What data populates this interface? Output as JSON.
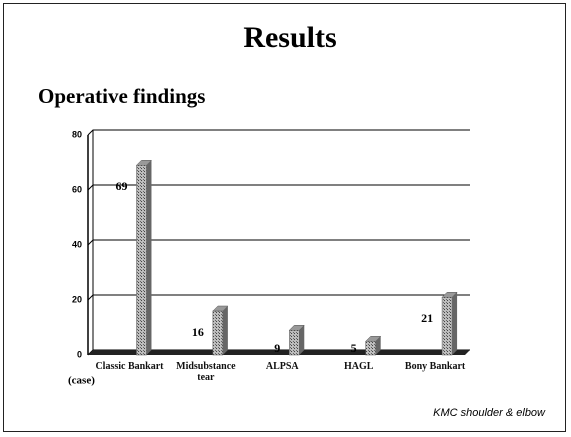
{
  "title": "Results",
  "subtitle": "Operative findings",
  "footer": "KMC shoulder & elbow",
  "chart_data": {
    "type": "bar",
    "categories": [
      "Classic Bankart",
      "Midsubstance tear",
      "ALPSA",
      "HAGL",
      "Bony Bankart"
    ],
    "values": [
      69,
      16,
      9,
      5,
      21
    ],
    "y_unit_label": "(case)",
    "color": "#8a8a8a",
    "ylim": [
      0,
      80
    ],
    "yticks": [
      0,
      20,
      40,
      60,
      80
    ],
    "grid": true
  }
}
